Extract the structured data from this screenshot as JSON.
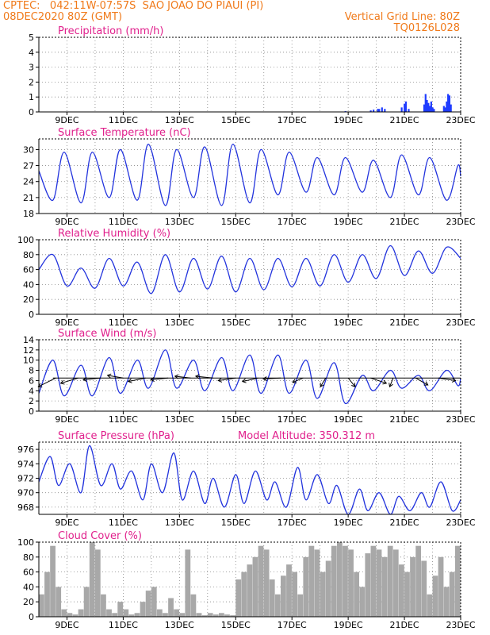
{
  "header": {
    "line1": "CPTEC:   042:11W-07:57S  SAO JOAO DO PIAUI (PI)",
    "line2": "08DEC2020 80Z (GMT)",
    "grid_note": "Vertical Grid Line: 80Z",
    "code": "TQ0126L028"
  },
  "colors": {
    "header": "#f07a1a",
    "panel_title": "#e0208c",
    "series": "#2233dd",
    "cloud": "#a8a8a8",
    "precip": "#1f3cff",
    "grid": "#888888"
  },
  "x_axis": {
    "ticks": [
      "9DEC",
      "11DEC",
      "13DEC",
      "15DEC",
      "17DEC",
      "19DEC",
      "21DEC",
      "23DEC"
    ]
  },
  "chart_data": [
    {
      "type": "bar",
      "title": "Precipitation (mm/h)",
      "x_range_days": [
        8,
        23
      ],
      "ylim": [
        0,
        5
      ],
      "yticks": [
        "0",
        "1",
        "2",
        "3",
        "4",
        "5"
      ],
      "grid": true,
      "x": [
        18.9,
        19.8,
        19.9,
        20.05,
        20.1,
        20.2,
        20.3,
        20.9,
        21.0,
        21.05,
        21.15,
        21.7,
        21.75,
        21.8,
        21.85,
        21.9,
        21.95,
        22.0,
        22.05,
        22.4,
        22.45,
        22.5,
        22.55,
        22.6,
        22.65
      ],
      "values": [
        0.05,
        0.1,
        0.15,
        0.2,
        0.2,
        0.3,
        0.2,
        0.3,
        0.55,
        0.7,
        0.2,
        0.5,
        1.2,
        0.8,
        0.6,
        0.4,
        0.7,
        0.3,
        0.2,
        0.4,
        0.3,
        0.7,
        1.2,
        1.1,
        0.5
      ]
    },
    {
      "type": "line",
      "title": "Surface Temperature (nC)",
      "x_range_days": [
        8,
        23
      ],
      "ylim": [
        18,
        32
      ],
      "yticks": [
        "18",
        "21",
        "24",
        "27",
        "30"
      ],
      "grid": true,
      "x": [
        8.0,
        8.5,
        8.9,
        9.5,
        9.9,
        10.5,
        10.9,
        11.5,
        11.9,
        12.5,
        12.9,
        13.5,
        13.9,
        14.5,
        14.9,
        15.5,
        15.9,
        16.5,
        16.9,
        17.5,
        17.9,
        18.5,
        18.9,
        19.5,
        19.9,
        20.5,
        20.9,
        21.5,
        21.9,
        22.5,
        22.9,
        23.0
      ],
      "values": [
        26,
        20.5,
        29.5,
        20,
        29.5,
        21,
        30,
        20.5,
        31,
        19.5,
        30,
        21,
        30.5,
        19.5,
        31,
        20,
        30,
        21.5,
        29.5,
        22,
        28.5,
        21.5,
        28.5,
        22,
        28,
        21,
        29,
        21.5,
        28.5,
        20.5,
        27,
        25
      ]
    },
    {
      "type": "line",
      "title": "Relative Humidity (%)",
      "x_range_days": [
        8,
        23
      ],
      "ylim": [
        0,
        100
      ],
      "yticks": [
        "0",
        "20",
        "40",
        "60",
        "80",
        "100"
      ],
      "grid": true,
      "x": [
        8.0,
        8.5,
        9.0,
        9.5,
        10.0,
        10.5,
        11.0,
        11.5,
        12.0,
        12.5,
        13.0,
        13.5,
        14.0,
        14.5,
        15.0,
        15.5,
        16.0,
        16.5,
        17.0,
        17.5,
        18.0,
        18.5,
        19.0,
        19.5,
        20.0,
        20.5,
        21.0,
        21.5,
        22.0,
        22.5,
        23.0
      ],
      "values": [
        60,
        80,
        38,
        62,
        35,
        75,
        38,
        70,
        28,
        80,
        30,
        75,
        34,
        78,
        30,
        75,
        33,
        75,
        37,
        75,
        38,
        80,
        43,
        80,
        48,
        92,
        52,
        85,
        55,
        90,
        75
      ]
    },
    {
      "type": "line",
      "title": "Surface Wind (m/s)",
      "x_range_days": [
        8,
        23
      ],
      "ylim": [
        0,
        14
      ],
      "yticks": [
        "0",
        "2",
        "4",
        "6",
        "8",
        "10",
        "12",
        "14"
      ],
      "grid": true,
      "x": [
        8.0,
        8.5,
        8.9,
        9.5,
        9.9,
        10.5,
        10.9,
        11.5,
        11.9,
        12.5,
        12.9,
        13.5,
        13.9,
        14.5,
        14.9,
        15.5,
        15.9,
        16.5,
        16.9,
        17.5,
        17.9,
        18.5,
        18.9,
        19.5,
        19.9,
        20.5,
        20.9,
        21.5,
        21.9,
        22.5,
        22.9,
        23.0
      ],
      "values": [
        3.5,
        10,
        3,
        9,
        3,
        10.5,
        3.5,
        10,
        4.5,
        12,
        4.5,
        10,
        4,
        10.5,
        4,
        11,
        3.5,
        11,
        3.5,
        10,
        2.5,
        9.5,
        1.5,
        7,
        4,
        8,
        4.5,
        7,
        4,
        8,
        5,
        6.5
      ],
      "vectors_line_value": 6.5
    },
    {
      "type": "line",
      "title": "Surface Pressure (hPa)",
      "annotation": "Model Altitude: 350.312 m",
      "x_range_days": [
        8,
        23
      ],
      "ylim": [
        967,
        977
      ],
      "yticks": [
        "968",
        "970",
        "972",
        "974",
        "976"
      ],
      "grid": true,
      "x": [
        8.0,
        8.4,
        8.7,
        9.1,
        9.5,
        9.8,
        10.2,
        10.6,
        10.9,
        11.3,
        11.7,
        12.0,
        12.4,
        12.8,
        13.1,
        13.5,
        13.9,
        14.2,
        14.6,
        15.0,
        15.3,
        15.7,
        16.1,
        16.4,
        16.8,
        17.2,
        17.5,
        17.9,
        18.3,
        18.6,
        19.0,
        19.4,
        19.7,
        20.1,
        20.5,
        20.8,
        21.2,
        21.6,
        21.9,
        22.3,
        22.7,
        23.0
      ],
      "values": [
        971.5,
        975,
        971,
        974,
        970,
        976.5,
        971,
        974,
        970.5,
        973,
        969,
        974,
        970,
        975.5,
        969,
        973,
        968.5,
        972,
        968,
        972.5,
        968.5,
        973,
        969,
        971.5,
        968,
        973.5,
        969,
        972.5,
        968.5,
        971,
        967,
        970.5,
        967.5,
        970,
        967,
        969.5,
        967.5,
        970,
        968,
        971.5,
        967.5,
        969
      ]
    },
    {
      "type": "area",
      "title": "Cloud Cover (%)",
      "x_range_days": [
        8,
        23
      ],
      "ylim": [
        0,
        100
      ],
      "yticks": [
        "0",
        "20",
        "40",
        "60",
        "80",
        "100"
      ],
      "grid": true,
      "x": [
        8.0,
        8.2,
        8.4,
        8.6,
        8.8,
        9.0,
        9.2,
        9.4,
        9.6,
        9.8,
        10.0,
        10.2,
        10.4,
        10.6,
        10.8,
        11.0,
        11.2,
        11.4,
        11.6,
        11.8,
        12.0,
        12.2,
        12.4,
        12.6,
        12.8,
        13.0,
        13.2,
        13.4,
        13.6,
        13.8,
        14.0,
        14.2,
        14.4,
        14.6,
        14.8,
        15.0,
        15.2,
        15.4,
        15.6,
        15.8,
        16.0,
        16.2,
        16.4,
        16.6,
        16.8,
        17.0,
        17.2,
        17.4,
        17.6,
        17.8,
        18.0,
        18.2,
        18.4,
        18.6,
        18.8,
        19.0,
        19.2,
        19.4,
        19.6,
        19.8,
        20.0,
        20.2,
        20.4,
        20.6,
        20.8,
        21.0,
        21.2,
        21.4,
        21.6,
        21.8,
        22.0,
        22.2,
        22.4,
        22.6,
        22.8,
        23.0
      ],
      "values": [
        30,
        60,
        95,
        40,
        10,
        5,
        3,
        10,
        40,
        100,
        90,
        30,
        10,
        5,
        20,
        10,
        3,
        5,
        20,
        35,
        40,
        10,
        5,
        25,
        10,
        5,
        90,
        30,
        5,
        2,
        5,
        3,
        5,
        3,
        2,
        50,
        60,
        70,
        80,
        95,
        90,
        50,
        30,
        55,
        70,
        60,
        30,
        80,
        95,
        90,
        60,
        75,
        95,
        100,
        95,
        90,
        60,
        40,
        85,
        95,
        90,
        80,
        95,
        90,
        70,
        60,
        80,
        95,
        75,
        30,
        55,
        80,
        40,
        60,
        95,
        90
      ]
    }
  ]
}
